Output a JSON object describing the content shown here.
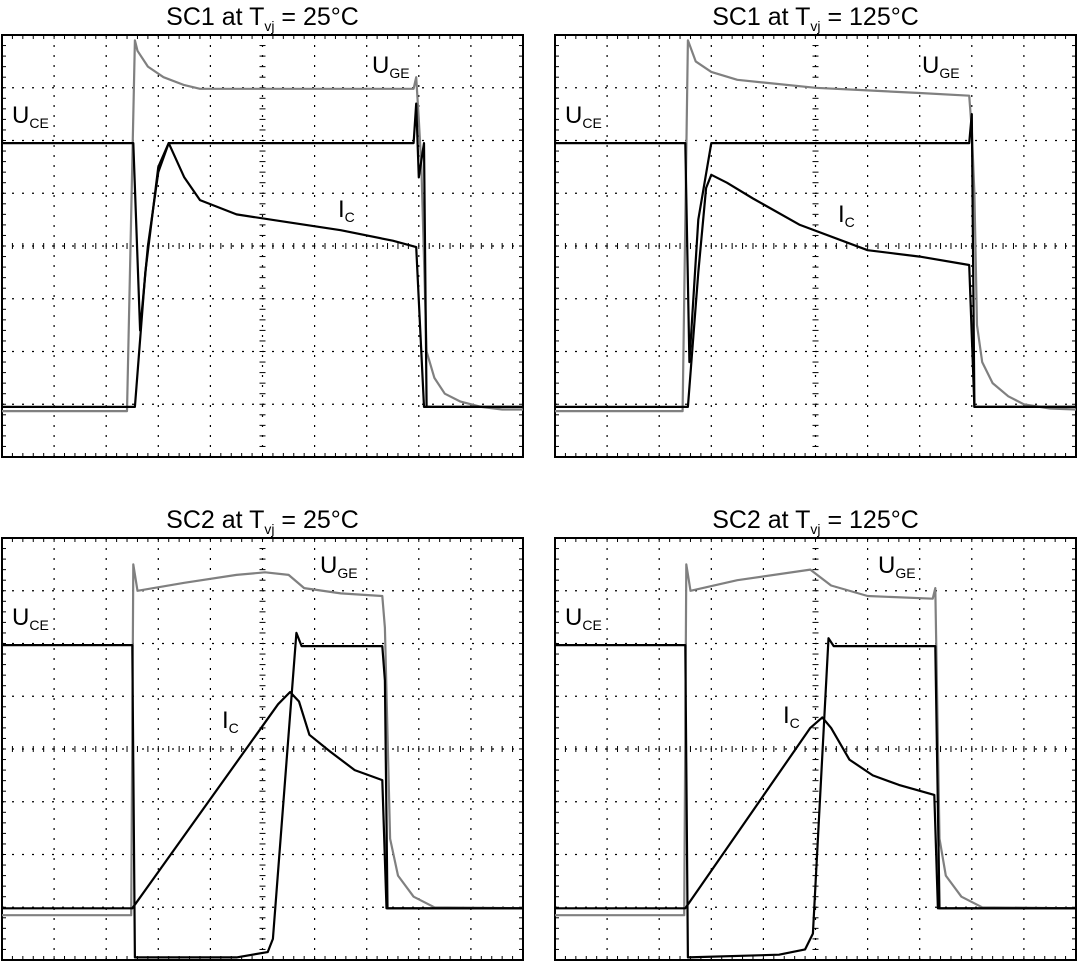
{
  "chart_data": [
    {
      "type": "line",
      "title": [
        "SC1 at T",
        "vj",
        " = 25°C"
      ],
      "xlim": [
        0,
        10
      ],
      "ylim": [
        0,
        8
      ],
      "xticks": [
        0,
        1,
        2,
        3,
        4,
        5,
        6,
        7,
        8,
        9,
        10
      ],
      "yticks": [
        0,
        1,
        2,
        3,
        4,
        5,
        6,
        7,
        8
      ],
      "grid": true,
      "series": [
        {
          "name": "U",
          "name_sub": "GE",
          "color": "#808080",
          "x": [
            0,
            2.4,
            2.55,
            2.6,
            2.8,
            3.1,
            3.5,
            3.8,
            5,
            6.5,
            7.9,
            7.95,
            8.0,
            8.05,
            8.15,
            8.3,
            8.5,
            8.8,
            9.2,
            9.6,
            10
          ],
          "values": [
            0.87,
            0.87,
            7.9,
            7.7,
            7.4,
            7.2,
            7.05,
            6.98,
            6.98,
            6.98,
            6.98,
            7.2,
            6.4,
            5.5,
            2.0,
            1.5,
            1.2,
            1.05,
            0.95,
            0.9,
            0.9
          ]
        },
        {
          "name": "U",
          "name_sub": "CE",
          "color": "#000000",
          "x": [
            0,
            2.52,
            2.65,
            2.8,
            3.0,
            3.2,
            5,
            7.9,
            7.95,
            8.0,
            8.1,
            8.15,
            10
          ],
          "values": [
            5.95,
            5.95,
            2.4,
            4.0,
            5.4,
            5.95,
            5.95,
            5.95,
            6.7,
            5.3,
            5.95,
            0.95,
            0.95
          ]
        },
        {
          "name": "I",
          "name_sub": "C",
          "color": "#000000",
          "x": [
            0,
            2.55,
            2.75,
            3.0,
            3.2,
            3.5,
            3.8,
            4.5,
            5.5,
            6.5,
            7.5,
            7.95,
            8.1,
            10
          ],
          "values": [
            0.95,
            0.95,
            3.5,
            5.5,
            5.95,
            5.3,
            4.87,
            4.6,
            4.45,
            4.3,
            4.1,
            3.98,
            0.95,
            0.95
          ]
        }
      ]
    },
    {
      "type": "line",
      "title": [
        "SC1 at T",
        "vj",
        " = 125°C"
      ],
      "xlim": [
        0,
        10
      ],
      "ylim": [
        0,
        8
      ],
      "xticks": [
        0,
        1,
        2,
        3,
        4,
        5,
        6,
        7,
        8,
        9,
        10
      ],
      "yticks": [
        0,
        1,
        2,
        3,
        4,
        5,
        6,
        7,
        8
      ],
      "grid": true,
      "series": [
        {
          "name": "U",
          "name_sub": "GE",
          "color": "#808080",
          "x": [
            0,
            2.45,
            2.55,
            2.7,
            3,
            3.5,
            4,
            5,
            6,
            7,
            7.95,
            8.0,
            8.05,
            8.1,
            8.2,
            8.4,
            8.7,
            9,
            9.5,
            10
          ],
          "values": [
            0.87,
            0.87,
            7.9,
            7.5,
            7.3,
            7.15,
            7.1,
            7.0,
            6.95,
            6.9,
            6.85,
            6.2,
            5.0,
            2.5,
            1.8,
            1.4,
            1.15,
            1.0,
            0.92,
            0.9
          ]
        },
        {
          "name": "U",
          "name_sub": "CE",
          "color": "#000000",
          "x": [
            0,
            2.5,
            2.58,
            2.75,
            3.0,
            7.95,
            8.0,
            8.05,
            10
          ],
          "values": [
            5.95,
            5.95,
            1.8,
            4.5,
            5.95,
            5.95,
            6.5,
            0.95,
            0.95
          ]
        },
        {
          "name": "I",
          "name_sub": "C",
          "color": "#000000",
          "x": [
            0,
            2.55,
            2.75,
            2.9,
            3.0,
            3.3,
            3.8,
            4.7,
            6,
            7,
            7.95,
            8.05,
            10
          ],
          "values": [
            0.95,
            0.95,
            3.5,
            5.1,
            5.35,
            5.2,
            4.9,
            4.4,
            3.92,
            3.8,
            3.64,
            0.95,
            0.95
          ]
        }
      ]
    },
    {
      "type": "line",
      "title": [
        "SC2 at T",
        "vj",
        " = 25°C"
      ],
      "xlim": [
        0,
        10
      ],
      "ylim": [
        0,
        8
      ],
      "xticks": [
        0,
        1,
        2,
        3,
        4,
        5,
        6,
        7,
        8,
        9,
        10
      ],
      "yticks": [
        0,
        1,
        2,
        3,
        4,
        5,
        6,
        7,
        8
      ],
      "grid": true,
      "series": [
        {
          "name": "U",
          "name_sub": "GE",
          "color": "#808080",
          "x": [
            0,
            2.48,
            2.52,
            2.6,
            3.5,
            4.5,
            5.05,
            5.5,
            5.8,
            6.5,
            7.3,
            7.35,
            7.45,
            7.6,
            7.9,
            8.3,
            10
          ],
          "values": [
            0.85,
            0.85,
            7.5,
            7.0,
            7.15,
            7.3,
            7.35,
            7.3,
            7.05,
            6.95,
            6.9,
            6.3,
            2.3,
            1.6,
            1.2,
            1.0,
            0.98
          ]
        },
        {
          "name": "U",
          "name_sub": "CE",
          "color": "#000000",
          "x": [
            0,
            2.5,
            2.55,
            4.5,
            5.1,
            5.2,
            5.65,
            5.75,
            7.3,
            7.35,
            7.4,
            10
          ],
          "values": [
            5.97,
            5.97,
            0.05,
            0.05,
            0.15,
            0.4,
            6.2,
            5.95,
            5.95,
            5.3,
            0.98,
            0.98
          ]
        },
        {
          "name": "I",
          "name_sub": "C",
          "color": "#000000",
          "x": [
            0,
            2.5,
            5.3,
            5.53,
            5.7,
            5.9,
            6.3,
            6.77,
            7.3,
            7.38,
            10
          ],
          "values": [
            0.98,
            0.98,
            4.85,
            5.08,
            4.9,
            4.27,
            3.95,
            3.6,
            3.41,
            0.98,
            0.98
          ]
        }
      ]
    },
    {
      "type": "line",
      "title": [
        "SC2 at T",
        "vj",
        " = 125°C"
      ],
      "xlim": [
        0,
        10
      ],
      "ylim": [
        0,
        8
      ],
      "xticks": [
        0,
        1,
        2,
        3,
        4,
        5,
        6,
        7,
        8,
        9,
        10
      ],
      "yticks": [
        0,
        1,
        2,
        3,
        4,
        5,
        6,
        7,
        8
      ],
      "grid": true,
      "series": [
        {
          "name": "U",
          "name_sub": "GE",
          "color": "#808080",
          "x": [
            0,
            2.48,
            2.52,
            2.6,
            3.5,
            4.9,
            5.3,
            6,
            7.25,
            7.3,
            7.38,
            7.5,
            7.8,
            8.2,
            10
          ],
          "values": [
            0.85,
            0.85,
            7.5,
            7.0,
            7.2,
            7.4,
            7.1,
            6.9,
            6.85,
            7.05,
            2.3,
            1.6,
            1.2,
            1.0,
            0.98
          ]
        },
        {
          "name": "U",
          "name_sub": "CE",
          "color": "#000000",
          "x": [
            0,
            2.5,
            2.55,
            4.3,
            4.8,
            4.95,
            5.25,
            5.35,
            7.3,
            7.38,
            10
          ],
          "values": [
            5.97,
            5.97,
            0.05,
            0.1,
            0.2,
            0.5,
            6.1,
            5.95,
            5.95,
            0.98,
            0.98
          ]
        },
        {
          "name": "I",
          "name_sub": "C",
          "color": "#000000",
          "x": [
            0,
            2.5,
            4.9,
            5.13,
            5.3,
            5.65,
            6.1,
            6.6,
            7.28,
            7.35,
            10
          ],
          "values": [
            0.98,
            0.98,
            4.4,
            4.6,
            4.4,
            3.8,
            3.5,
            3.32,
            3.13,
            0.98,
            0.98
          ]
        }
      ]
    }
  ]
}
